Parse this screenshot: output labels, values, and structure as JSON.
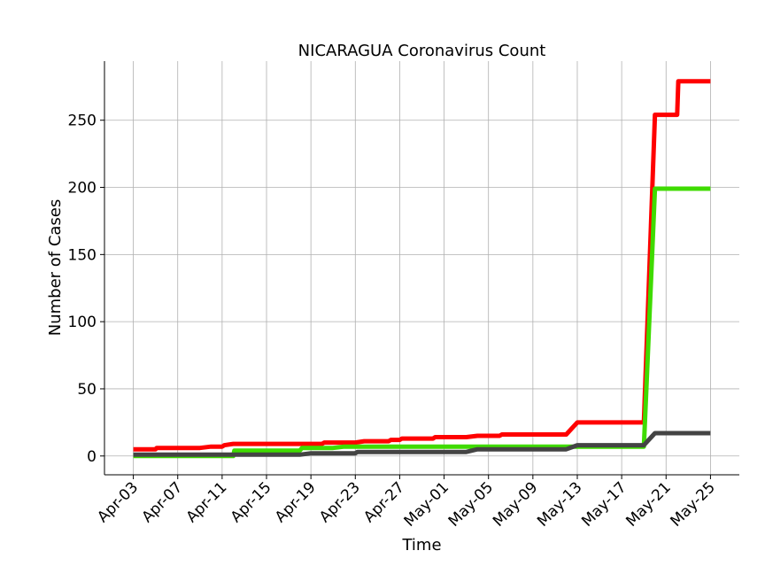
{
  "chart_data": {
    "type": "line",
    "title": "NICARAGUA Coronavirus Count",
    "xlabel": "Time",
    "ylabel": "Number of Cases",
    "x_tick_labels": [
      "Apr-03",
      "Apr-07",
      "Apr-11",
      "Apr-15",
      "Apr-19",
      "Apr-23",
      "Apr-27",
      "May-01",
      "May-05",
      "May-09",
      "May-13",
      "May-17",
      "May-21",
      "May-25"
    ],
    "x_tick_days": [
      0,
      4,
      8,
      12,
      16,
      20,
      24,
      28,
      32,
      36,
      40,
      44,
      48,
      52
    ],
    "y_ticks": [
      0,
      50,
      100,
      150,
      200,
      250
    ],
    "xlim_days": [
      -2.6,
      54.6
    ],
    "ylim": [
      -14,
      294
    ],
    "grid": true,
    "series": [
      {
        "color": "#ff0000",
        "points": [
          [
            0,
            5
          ],
          [
            2,
            5
          ],
          [
            2.1,
            6
          ],
          [
            6,
            6
          ],
          [
            7,
            7
          ],
          [
            8,
            7
          ],
          [
            8.2,
            8
          ],
          [
            9,
            9
          ],
          [
            17,
            9
          ],
          [
            17.2,
            10
          ],
          [
            20,
            10
          ],
          [
            20.8,
            11
          ],
          [
            23,
            11
          ],
          [
            23.2,
            12
          ],
          [
            24,
            12
          ],
          [
            24.2,
            13
          ],
          [
            27,
            13
          ],
          [
            27.2,
            14
          ],
          [
            30,
            14
          ],
          [
            31,
            15
          ],
          [
            33,
            15
          ],
          [
            33.2,
            16
          ],
          [
            39,
            16
          ],
          [
            40,
            25
          ],
          [
            46,
            25
          ],
          [
            47,
            254
          ],
          [
            49,
            254
          ],
          [
            49.1,
            279
          ],
          [
            52,
            279
          ]
        ]
      },
      {
        "color": "#3fdb00",
        "points": [
          [
            0,
            0
          ],
          [
            9,
            0
          ],
          [
            9.1,
            4
          ],
          [
            15,
            4
          ],
          [
            15.2,
            6
          ],
          [
            18,
            6
          ],
          [
            19,
            7
          ],
          [
            46,
            7
          ],
          [
            47,
            199
          ],
          [
            52,
            199
          ]
        ]
      },
      {
        "color": "#444444",
        "points": [
          [
            0,
            1
          ],
          [
            15,
            1
          ],
          [
            16,
            2
          ],
          [
            20,
            2
          ],
          [
            20.2,
            3
          ],
          [
            30,
            3
          ],
          [
            31,
            5
          ],
          [
            39,
            5
          ],
          [
            40,
            8
          ],
          [
            46,
            8
          ],
          [
            47,
            17
          ],
          [
            52,
            17
          ]
        ]
      }
    ]
  }
}
